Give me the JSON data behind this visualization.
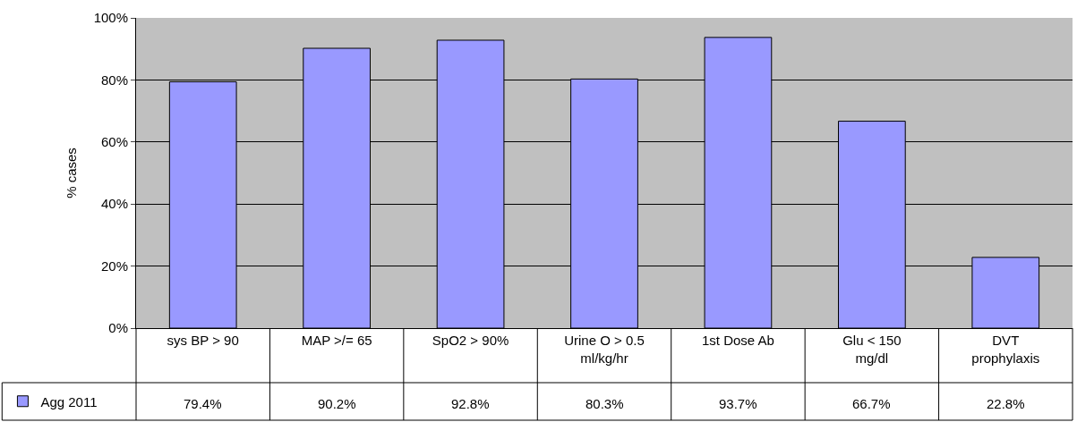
{
  "chart_data": {
    "type": "bar",
    "ylabel": "% cases",
    "categories": [
      "sys BP > 90",
      "MAP >/= 65",
      "SpO2 > 90%",
      "Urine O > 0.5 ml/kg/hr",
      "1st Dose Ab",
      "Glu < 150 mg/dl",
      "DVT prophylaxis"
    ],
    "series": [
      {
        "name": "Agg 2011",
        "color": "#9999ff",
        "values": [
          79.4,
          90.2,
          92.8,
          80.3,
          93.7,
          66.7,
          22.8
        ],
        "value_labels": [
          "79.4%",
          "90.2%",
          "92.8%",
          "80.3%",
          "93.7%",
          "66.7%",
          "22.8%"
        ]
      }
    ],
    "ylim": [
      0,
      100
    ],
    "yticks": [
      {
        "value": 0,
        "label": "0%"
      },
      {
        "value": 20,
        "label": "20%"
      },
      {
        "value": 40,
        "label": "40%"
      },
      {
        "value": 60,
        "label": "60%"
      },
      {
        "value": 80,
        "label": "80%"
      },
      {
        "value": 100,
        "label": "100%"
      }
    ],
    "grid": "y",
    "legend": "bottom left"
  }
}
